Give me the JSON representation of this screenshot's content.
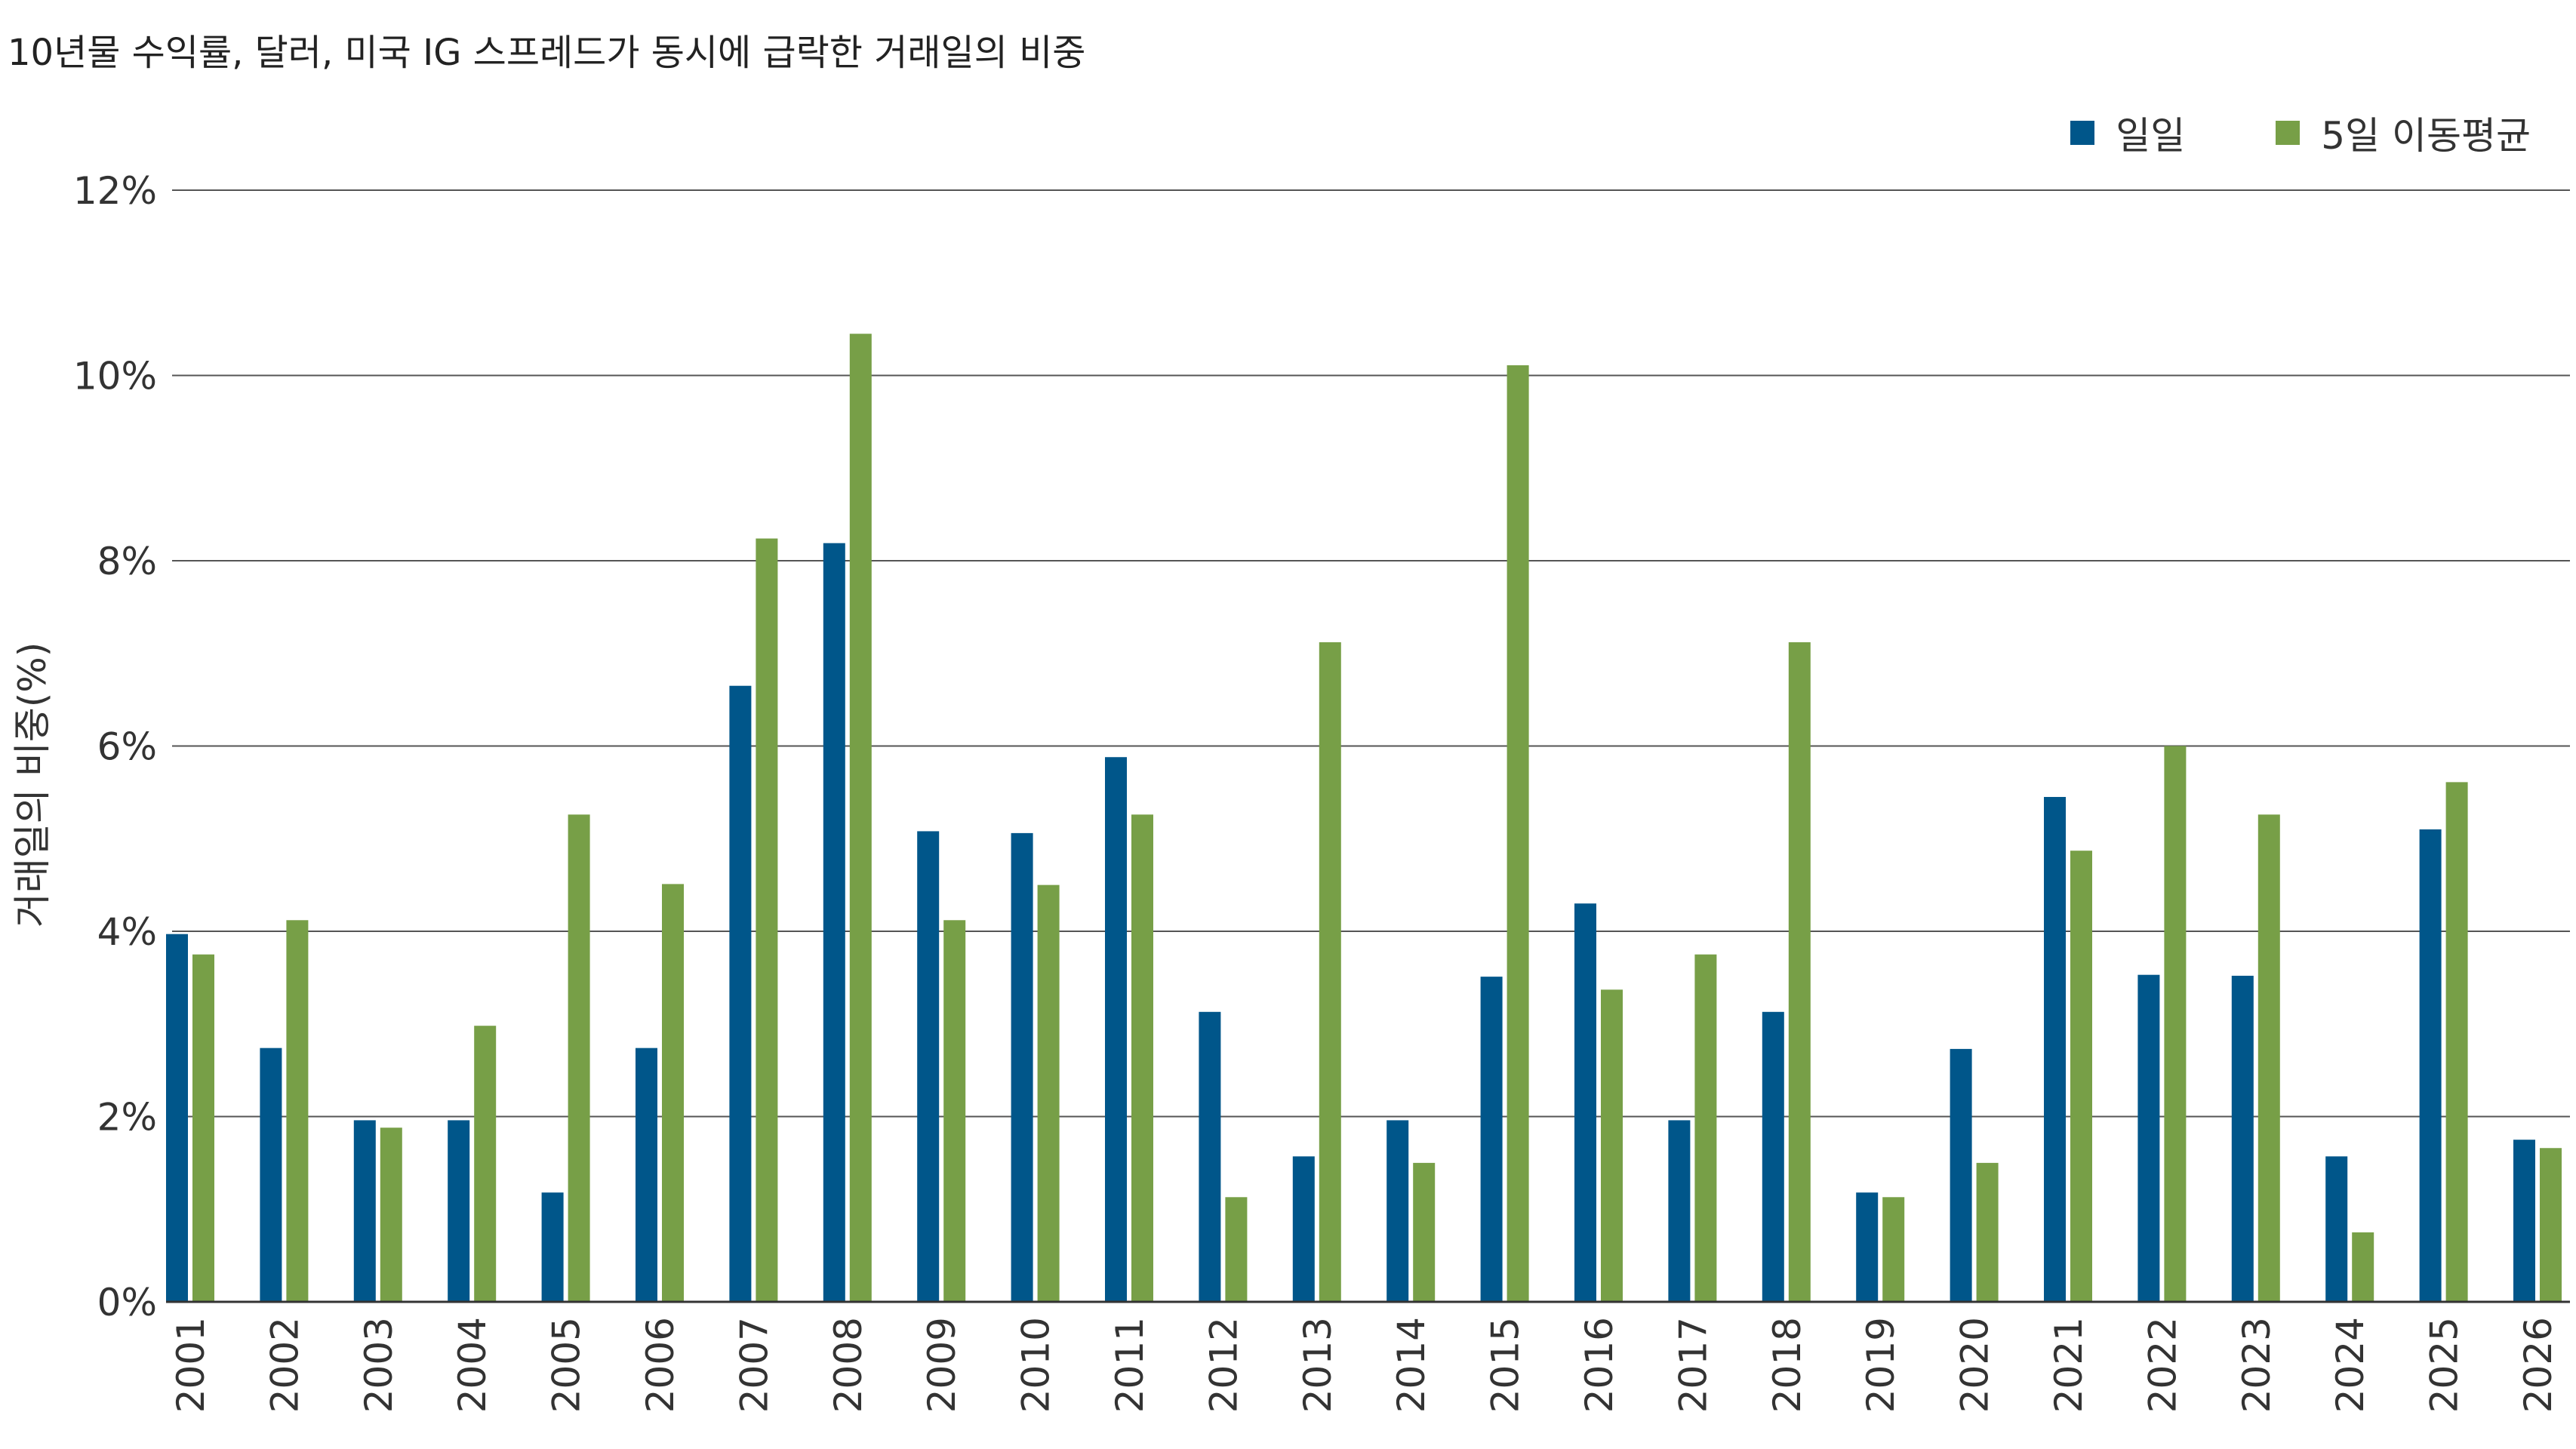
{
  "chart_data": {
    "type": "bar",
    "title": "10년물 수익률, 달러, 미국 IG 스프레드가 동시에 급락한 거래일의 비중",
    "xlabel": "",
    "ylabel": "거래일의 비중(%)",
    "ylim": [
      0,
      12
    ],
    "yticks": [
      0,
      2,
      4,
      6,
      8,
      10,
      12
    ],
    "ytick_labels": [
      "0%",
      "2%",
      "4%",
      "6%",
      "8%",
      "10%",
      "12%"
    ],
    "grid": true,
    "legend_position": "top-right",
    "categories": [
      "2001",
      "2002",
      "2003",
      "2004",
      "2005",
      "2006",
      "2007",
      "2008",
      "2009",
      "2010",
      "2011",
      "2012",
      "2013",
      "2014",
      "2015",
      "2016",
      "2017",
      "2018",
      "2019",
      "2020",
      "2021",
      "2022",
      "2023",
      "2024",
      "2025",
      "2026"
    ],
    "series": [
      {
        "name": "일일",
        "color": "#00568a",
        "values": [
          3.97,
          2.74,
          1.96,
          1.96,
          1.18,
          2.74,
          6.65,
          8.19,
          5.08,
          5.06,
          5.88,
          3.13,
          1.57,
          1.96,
          3.51,
          4.3,
          1.96,
          3.13,
          1.18,
          2.73,
          5.45,
          3.53,
          3.52,
          1.57,
          5.1,
          1.75
        ]
      },
      {
        "name": "5일 이동평균",
        "color": "#779f47",
        "values": [
          3.75,
          4.12,
          1.88,
          2.98,
          5.26,
          4.51,
          8.24,
          10.45,
          4.12,
          4.5,
          5.26,
          1.13,
          7.12,
          1.5,
          10.11,
          3.37,
          3.75,
          7.12,
          1.13,
          1.5,
          4.87,
          6.0,
          5.26,
          0.75,
          5.61,
          1.66
        ]
      }
    ]
  }
}
